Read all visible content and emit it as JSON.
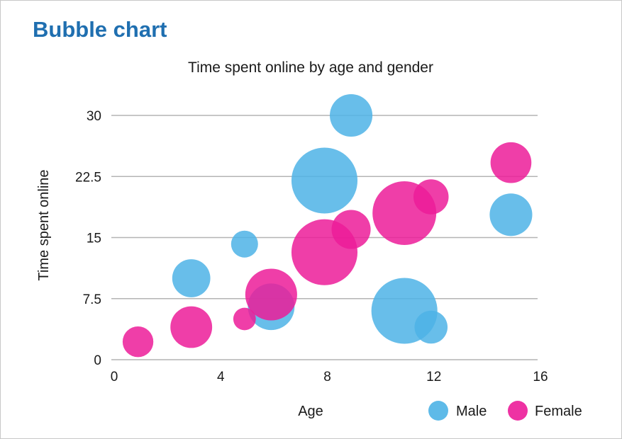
{
  "header": {
    "title": "Bubble chart"
  },
  "colors": {
    "male": "#4db3e6",
    "female": "#ec1c99",
    "title": "#1f6fb0",
    "grid": "#b4b4b4"
  },
  "chart_data": {
    "type": "scatter",
    "title": "Time spent online by age and gender",
    "xlabel": "Age",
    "ylabel": "Time spent online",
    "xlim": [
      0,
      16
    ],
    "ylim": [
      0,
      30
    ],
    "x_ticks": [
      0,
      4,
      8,
      12,
      16
    ],
    "y_ticks": [
      0,
      7.5,
      15,
      22.5,
      30
    ],
    "x_tick_labels": [
      "0",
      "4",
      "8",
      "12",
      "16"
    ],
    "y_tick_labels": [
      "0",
      "7.5",
      "15",
      "22.5",
      "30"
    ],
    "grid": "horizontal",
    "legend_position": "bottom-right",
    "series": [
      {
        "name": "Male",
        "color": "#4db3e6",
        "points": [
          {
            "x": 3,
            "y": 10,
            "size": 2
          },
          {
            "x": 5,
            "y": 14.2,
            "size": 1
          },
          {
            "x": 6,
            "y": 6.5,
            "size": 3
          },
          {
            "x": 8,
            "y": 22,
            "size": 6
          },
          {
            "x": 9,
            "y": 30,
            "size": 2.5
          },
          {
            "x": 11,
            "y": 6,
            "size": 6
          },
          {
            "x": 12,
            "y": 4,
            "size": 1.5
          },
          {
            "x": 15,
            "y": 17.8,
            "size": 2.5
          }
        ]
      },
      {
        "name": "Female",
        "color": "#ec1c99",
        "points": [
          {
            "x": 1,
            "y": 2.2,
            "size": 1.3
          },
          {
            "x": 3,
            "y": 4,
            "size": 2.4
          },
          {
            "x": 5,
            "y": 5,
            "size": 0.7
          },
          {
            "x": 6,
            "y": 8,
            "size": 3.7
          },
          {
            "x": 8,
            "y": 13.2,
            "size": 6
          },
          {
            "x": 9,
            "y": 16,
            "size": 2.1
          },
          {
            "x": 11,
            "y": 18,
            "size": 5.6
          },
          {
            "x": 12,
            "y": 20,
            "size": 1.7
          },
          {
            "x": 15,
            "y": 24.2,
            "size": 2.3
          }
        ]
      }
    ]
  }
}
